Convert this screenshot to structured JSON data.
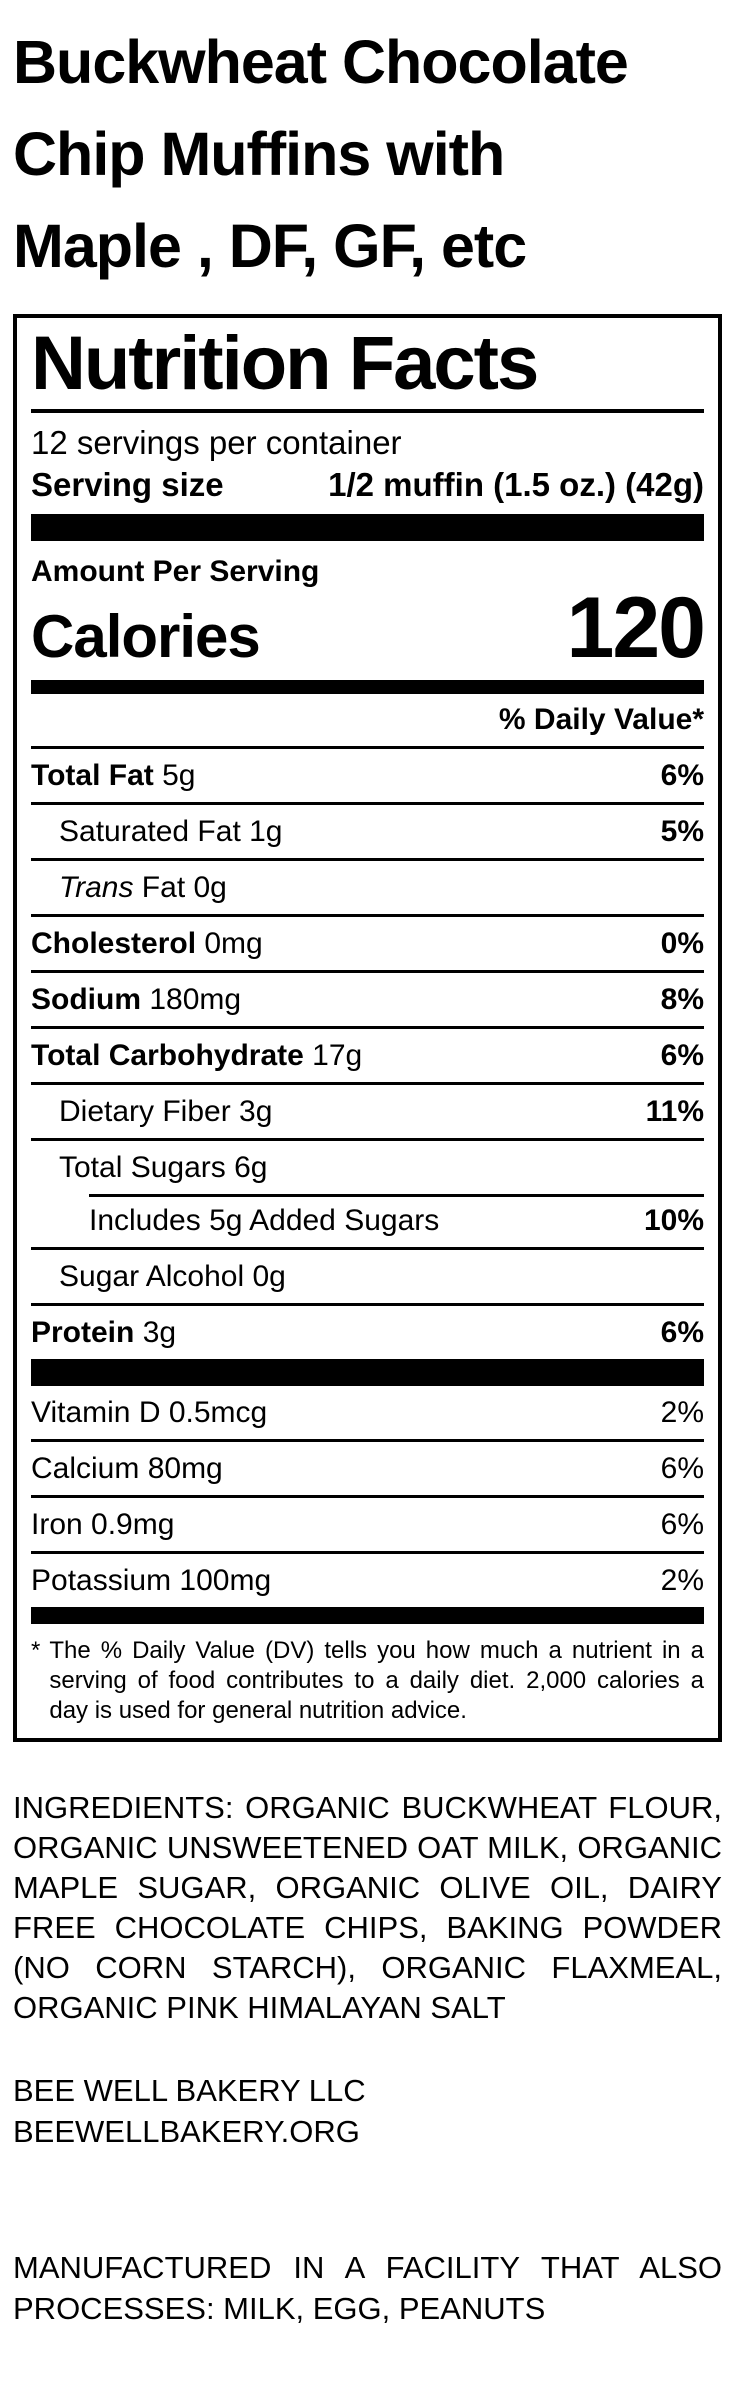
{
  "colors": {
    "background": "#ffffff",
    "text": "#000000"
  },
  "product_title": {
    "lines": [
      "Buckwheat Chocolate",
      "Chip Muffins with",
      "Maple , DF, GF, etc"
    ]
  },
  "label": {
    "title": "Nutrition Facts",
    "servings_per_container": "12 servings per container",
    "serving_size_label": "Serving size",
    "serving_size_value": "1/2 muffin (1.5 oz.) (42g)",
    "amount_per_serving": "Amount Per Serving",
    "calories_label": "Calories",
    "calories_value": "120",
    "daily_value_header": "% Daily Value*",
    "nutrients": [
      {
        "name": "Total Fat",
        "amount": "5g",
        "dv": "6%",
        "bold": true,
        "indent": 0
      },
      {
        "name": "Saturated Fat",
        "amount": "1g",
        "dv": "5%",
        "bold": false,
        "indent": 1
      },
      {
        "italic": "Trans",
        "name": " Fat",
        "amount": "0g",
        "dv": "",
        "bold": false,
        "indent": 1
      },
      {
        "name": "Cholesterol",
        "amount": "0mg",
        "dv": "0%",
        "bold": true,
        "indent": 0
      },
      {
        "name": "Sodium",
        "amount": "180mg",
        "dv": "8%",
        "bold": true,
        "indent": 0
      },
      {
        "name": "Total Carbohydrate",
        "amount": "17g",
        "dv": "6%",
        "bold": true,
        "indent": 0
      },
      {
        "name": "Dietary Fiber",
        "amount": "3g",
        "dv": "11%",
        "bold": false,
        "indent": 1
      },
      {
        "name": "Total Sugars",
        "amount": "6g",
        "dv": "",
        "bold": false,
        "indent": 1
      },
      {
        "name": "Includes 5g Added Sugars",
        "amount": "",
        "dv": "10%",
        "bold": false,
        "indent": 2,
        "rule_indent": true
      },
      {
        "name": "Sugar Alcohol",
        "amount": "0g",
        "dv": "",
        "bold": false,
        "indent": 1
      },
      {
        "name": "Protein",
        "amount": "3g",
        "dv": "6%",
        "bold": true,
        "indent": 0
      }
    ],
    "vitamins": [
      {
        "name": "Vitamin D",
        "amount": "0.5mcg",
        "dv": "2%"
      },
      {
        "name": "Calcium",
        "amount": "80mg",
        "dv": "6%"
      },
      {
        "name": "Iron",
        "amount": "0.9mg",
        "dv": "6%"
      },
      {
        "name": "Potassium",
        "amount": "100mg",
        "dv": "2%"
      }
    ],
    "footnote_marker": "*",
    "footnote_text": "The % Daily Value (DV) tells you how much a nutrient in a serving of food contributes to a daily diet. 2,000 calories a day is used for general nutrition advice."
  },
  "ingredients_text": "INGREDIENTS: ORGANIC BUCKWHEAT FLOUR, ORGANIC UNSWEETENED OAT MILK, ORGANIC MAPLE SUGAR, ORGANIC OLIVE OIL, DAIRY FREE CHOCOLATE CHIPS, BAKING POWDER (NO CORN STARCH), ORGANIC FLAXMEAL, ORGANIC PINK HIMALAYAN SALT",
  "footer": {
    "company": "BEE WELL BAKERY LLC",
    "website": "BEEWELLBAKERY.ORG",
    "allergen": "MANUFACTURED IN A FACILITY THAT ALSO PROCESSES: MILK, EGG, PEANUTS"
  }
}
